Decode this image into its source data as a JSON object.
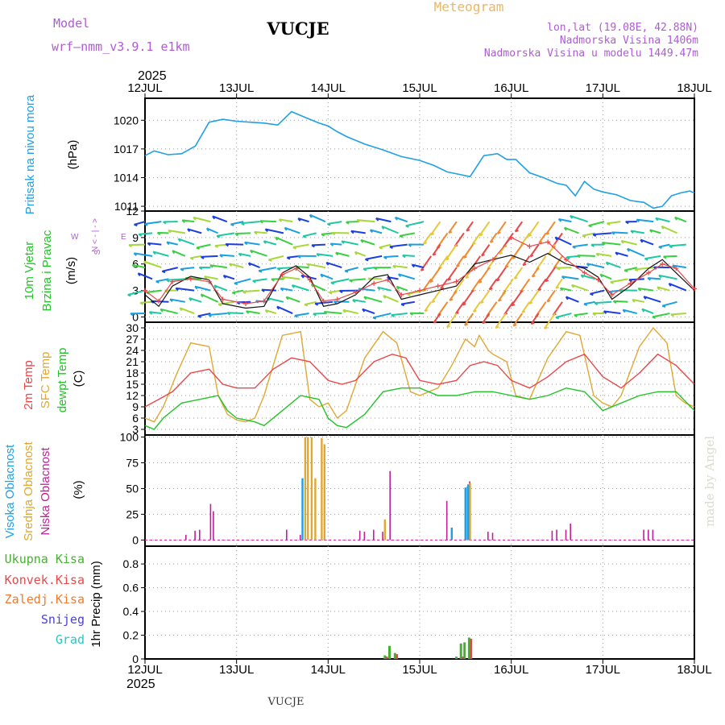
{
  "header": {
    "model_label": "Model",
    "model_name": "wrf–nmm_v3.9.1  e1km",
    "station": "VUCJE",
    "title": "Meteogram",
    "coords": "lon,lat (19.08E, 42.88N)",
    "elevation": "Nadmorska Visina 1406m",
    "model_elevation": "Nadmorska Visina u modelu 1449.47m",
    "year_top": "2025",
    "year_bottom": "2025",
    "footer_station": "VUCJE",
    "watermark": "made by Angel"
  },
  "colors": {
    "pressure": "#1fa0e6",
    "temp2m": "#e8484a",
    "sfc_temp": "#e0a832",
    "dewpt": "#22c428",
    "low_cloud": "#c0209a",
    "mid_cloud": "#e0a832",
    "high_cloud": "#1fa0e6",
    "wind_speed": "#111111",
    "wind_gust": "#e8484a",
    "total_precip": "#44b22e",
    "convective": "#e8484a",
    "frozen": "#f07a30",
    "snow": "#4a3ee0",
    "hail": "#28c8c0"
  },
  "chart_data": [
    {
      "type": "line",
      "panel": "pressure",
      "ylabel": [
        "Pritisak na nivou mora",
        "(hPa)"
      ],
      "x_ticks": [
        "12JUL",
        "13JUL",
        "14JUL",
        "15JUL",
        "16JUL",
        "17JUL",
        "18JUL"
      ],
      "yticks": [
        "1011",
        "1014",
        "1017",
        "1020"
      ],
      "ylim": [
        1010.5,
        1022.3
      ],
      "xlim": [
        0,
        6
      ],
      "series": [
        {
          "x": [
            0,
            0.1,
            0.25,
            0.4,
            0.55,
            0.7,
            0.85,
            1.0,
            1.15,
            1.3,
            1.45,
            1.6,
            1.75,
            1.9,
            2.0,
            2.1,
            2.2,
            2.4,
            2.6,
            2.8,
            3.0,
            3.15,
            3.3,
            3.45,
            3.55,
            3.7,
            3.85,
            3.95,
            4.05,
            4.2,
            4.35,
            4.5,
            4.6,
            4.7,
            4.8,
            4.9,
            5.0,
            5.15,
            5.3,
            5.45,
            5.55,
            5.65,
            5.75,
            5.85,
            5.95,
            6.0
          ],
          "values": [
            1016.3,
            1016.8,
            1016.4,
            1016.5,
            1017.3,
            1019.8,
            1020.1,
            1019.9,
            1019.8,
            1019.7,
            1019.5,
            1020.9,
            1020.3,
            1019.7,
            1019.4,
            1018.8,
            1018.3,
            1017.5,
            1016.9,
            1016.2,
            1015.8,
            1015.3,
            1014.6,
            1014.3,
            1014.1,
            1016.3,
            1016.5,
            1015.9,
            1015.9,
            1014.5,
            1014.0,
            1013.4,
            1013.2,
            1012.1,
            1013.6,
            1012.8,
            1012.5,
            1012.2,
            1011.6,
            1011.4,
            1010.8,
            1011.0,
            1012.1,
            1012.4,
            1012.6,
            1012.4
          ]
        }
      ]
    },
    {
      "type": "line",
      "panel": "wind",
      "ylabel": [
        "10m Vjetar",
        "Brzina i Pravac",
        "(m/s)"
      ],
      "compass": [
        "N",
        "<",
        "-",
        "|",
        "-",
        ">",
        "W",
        "E",
        "S"
      ],
      "yticks": [
        "0",
        "3",
        "6",
        "9",
        "12"
      ],
      "ylim": [
        -0.6,
        12
      ],
      "series": [
        {
          "name": "speed",
          "x": [
            0,
            0.15,
            0.3,
            0.5,
            0.7,
            0.85,
            1.1,
            1.3,
            1.5,
            1.65,
            1.8,
            1.95,
            2.1,
            2.3,
            2.5,
            2.65,
            2.8,
            3.0,
            3.2,
            3.4,
            3.6,
            3.8,
            4.0,
            4.2,
            4.4,
            4.6,
            4.8,
            4.95,
            5.1,
            5.3,
            5.5,
            5.65,
            5.8,
            6.0
          ],
          "values": [
            2.5,
            1.2,
            3.5,
            4.6,
            4.2,
            1.5,
            1.0,
            1.2,
            5.0,
            5.8,
            4.5,
            1.2,
            1.5,
            2.5,
            4.5,
            4.8,
            2.0,
            2.5,
            3.0,
            3.5,
            6.0,
            6.5,
            7.0,
            6.2,
            7.2,
            6.0,
            5.5,
            4.5,
            2.0,
            3.5,
            5.5,
            6.5,
            5.0,
            3.0
          ]
        },
        {
          "name": "gust",
          "x": [
            0,
            0.15,
            0.3,
            0.5,
            0.7,
            0.85,
            1.1,
            1.3,
            1.5,
            1.65,
            1.8,
            1.95,
            2.1,
            2.3,
            2.5,
            2.65,
            2.8,
            3.0,
            3.2,
            3.4,
            3.6,
            3.8,
            4.0,
            4.2,
            4.4,
            4.6,
            4.8,
            4.95,
            5.1,
            5.3,
            5.5,
            5.65,
            5.8,
            6.0
          ],
          "values": [
            3.0,
            1.8,
            4.0,
            4.3,
            4.0,
            2.0,
            1.5,
            1.8,
            4.8,
            5.5,
            4.2,
            1.8,
            2.0,
            2.8,
            3.8,
            4.2,
            2.5,
            3.0,
            3.5,
            4.0,
            5.5,
            6.5,
            9.0,
            8.0,
            8.5,
            6.5,
            5.0,
            4.2,
            2.5,
            3.8,
            5.0,
            6.0,
            5.5,
            3.2
          ]
        }
      ]
    },
    {
      "type": "line",
      "panel": "temperature",
      "ylabel": [
        "2m Temp",
        "SFC Temp",
        "dewpt Temp",
        "(C)"
      ],
      "yticks": [
        "3",
        "6",
        "9",
        "12",
        "15",
        "18",
        "21",
        "24",
        "27",
        "30"
      ],
      "ylim": [
        1.5,
        31.5
      ],
      "series": [
        {
          "name": "2m Temp",
          "x": [
            0,
            0.15,
            0.3,
            0.5,
            0.7,
            0.85,
            1.0,
            1.2,
            1.4,
            1.6,
            1.8,
            2.0,
            2.15,
            2.3,
            2.5,
            2.7,
            2.85,
            3.0,
            3.2,
            3.4,
            3.55,
            3.7,
            3.85,
            4.0,
            4.2,
            4.4,
            4.6,
            4.8,
            5.0,
            5.2,
            5.4,
            5.6,
            5.8,
            6.0
          ],
          "values": [
            9,
            11,
            13,
            18,
            19,
            15,
            14,
            14,
            19,
            22,
            21,
            16,
            15,
            16,
            21,
            23,
            22,
            16,
            15,
            16,
            20,
            21,
            20,
            16,
            14,
            17,
            21,
            23,
            17,
            14,
            18,
            23,
            20,
            15
          ]
        },
        {
          "name": "SFC Temp",
          "x": [
            0,
            0.1,
            0.2,
            0.35,
            0.5,
            0.7,
            0.8,
            0.9,
            1.0,
            1.1,
            1.2,
            1.3,
            1.5,
            1.7,
            1.8,
            1.9,
            2.0,
            2.1,
            2.2,
            2.4,
            2.6,
            2.75,
            2.9,
            3.0,
            3.2,
            3.35,
            3.5,
            3.6,
            3.65,
            3.75,
            3.8,
            3.95,
            4.05,
            4.2,
            4.4,
            4.6,
            4.75,
            4.9,
            5.0,
            5.1,
            5.2,
            5.4,
            5.55,
            5.7,
            5.8,
            5.9,
            6.0
          ],
          "values": [
            6,
            5,
            9,
            18,
            26,
            25,
            12,
            7,
            5.5,
            5,
            6,
            12,
            28,
            29,
            11,
            9,
            10,
            6,
            8,
            22,
            29,
            26,
            13,
            12,
            14,
            20,
            27,
            25,
            28,
            24,
            23,
            21,
            12,
            11,
            22,
            29,
            28,
            12,
            10,
            9,
            12,
            25,
            30,
            26,
            12,
            10,
            9
          ]
        },
        {
          "name": "dewpt Temp",
          "x": [
            0,
            0.1,
            0.2,
            0.4,
            0.6,
            0.8,
            0.9,
            1.0,
            1.1,
            1.2,
            1.3,
            1.5,
            1.7,
            1.9,
            2.0,
            2.1,
            2.2,
            2.4,
            2.6,
            2.8,
            3.0,
            3.2,
            3.4,
            3.6,
            3.8,
            4.0,
            4.2,
            4.4,
            4.6,
            4.8,
            5.0,
            5.2,
            5.4,
            5.6,
            5.8,
            6.0
          ],
          "values": [
            4,
            3,
            6,
            10,
            11,
            12,
            8,
            6,
            5.5,
            5,
            4,
            8,
            12,
            11,
            6,
            4,
            3.5,
            7,
            13,
            14,
            14,
            12,
            12,
            13,
            13,
            12,
            11,
            12,
            14,
            13,
            8,
            10,
            12,
            13,
            13,
            8
          ]
        }
      ]
    },
    {
      "type": "bar",
      "panel": "clouds",
      "ylabel": [
        "Visoka Oblacnost",
        "Srednja Oblacnost",
        "Niska Oblacnost",
        "(%)"
      ],
      "yticks": [
        "0",
        "25",
        "50",
        "75",
        "100"
      ],
      "ylim": [
        -6,
        102
      ],
      "series": [
        {
          "name": "Niska Oblacnost",
          "x": [
            0.45,
            0.55,
            0.6,
            0.72,
            0.75,
            1.55,
            1.7,
            2.35,
            2.4,
            2.5,
            2.6,
            2.68,
            3.3,
            3.55,
            3.75,
            3.8,
            4.45,
            4.5,
            4.6,
            4.65,
            5.45,
            5.5,
            5.55
          ],
          "values": [
            5,
            9,
            10,
            35,
            28,
            10,
            5,
            9,
            8,
            10,
            8,
            67,
            38,
            57,
            8,
            7,
            9,
            10,
            10,
            16,
            10,
            10,
            10
          ]
        },
        {
          "name": "Srednja Oblacnost",
          "x": [
            1.75,
            1.78,
            1.82,
            1.86,
            1.93,
            1.96,
            2.62,
            3.5,
            3.52,
            3.55
          ],
          "values": [
            100,
            100,
            100,
            60,
            99,
            93,
            20,
            49,
            52,
            55
          ]
        },
        {
          "name": "Visoka Oblacnost",
          "x": [
            1.72,
            3.35,
            3.5,
            3.53
          ],
          "values": [
            60,
            12,
            51,
            54
          ]
        }
      ]
    },
    {
      "type": "bar",
      "panel": "precip",
      "ylabel": [
        "Ukupna Kisa",
        "Konvek.Kisa",
        "Zaledj.Kisa",
        "Snijeg",
        "Grad",
        "1hr Precip (mm)"
      ],
      "yticks": [
        "0",
        "0.2",
        "0.4",
        "0.6",
        "0.8"
      ],
      "ylim": [
        0,
        0.95
      ],
      "series": [
        {
          "name": "Ukupna Kisa",
          "x": [
            2.62,
            2.67,
            2.73,
            3.4,
            3.45,
            3.49,
            3.54
          ],
          "values": [
            0.03,
            0.11,
            0.05,
            0.02,
            0.13,
            0.14,
            0.18
          ]
        },
        {
          "name": "Konvek.Kisa",
          "x": [
            2.64,
            2.75,
            3.47,
            3.56
          ],
          "values": [
            0.02,
            0.04,
            0.02,
            0.17
          ]
        }
      ]
    }
  ]
}
